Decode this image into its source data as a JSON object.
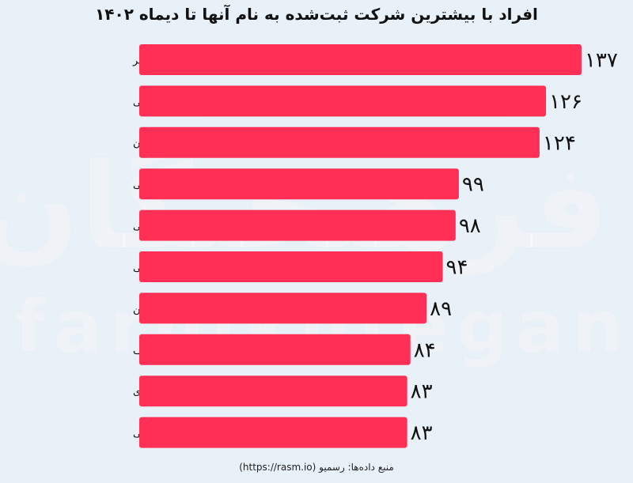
{
  "title": "افراد با بیشترین شرکت ثبت‌شده به نام آنها تا دیماه ۱۴۰۲",
  "source": "منبع داده‌ها: رسمیو (https://rasm.io)",
  "watermark": {
    "fa": "فرهیختگان",
    "en": "farhikhtegan"
  },
  "colors": {
    "bar": "#ff2f55",
    "label_text": "#111111",
    "value_text": "#111111",
    "divider": "#c9d3dc"
  },
  "chart_data": {
    "type": "bar",
    "orientation": "horizontal",
    "title": "افراد با بیشترین شرکت ثبت‌شده به نام آنها تا دیماه ۱۴۰۲",
    "categories": [
      "علی ابراهیمی کرد لر",
      "مهدی فضلی",
      "محمد شرکت بزازان",
      "رضا مأکولاتی",
      "مهدیه عزیز عینی",
      "حمیدرضا جبینی",
      "فخری زره تن",
      "رقیه فرجی مزرعه خلف",
      "حسن علوی",
      "زهرا عزیزعینی"
    ],
    "values": [
      137,
      126,
      124,
      99,
      98,
      94,
      89,
      84,
      83,
      83
    ],
    "value_labels": [
      "۱۳۷",
      "۱۲۶",
      "۱۲۴",
      "۹۹",
      "۹۸",
      "۹۴",
      "۸۹",
      "۸۴",
      "۸۳",
      "۸۳"
    ],
    "xlabel": "",
    "ylabel": "",
    "grid": false
  }
}
